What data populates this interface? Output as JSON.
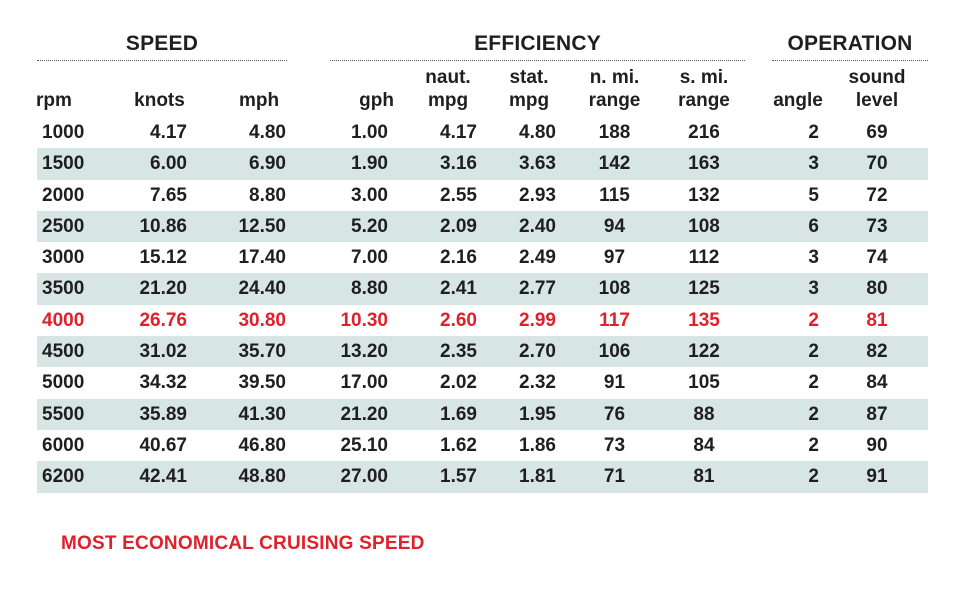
{
  "colors": {
    "accent": "#e0202b",
    "row_shade": "#d7e5e3",
    "text": "#1f1f1f"
  },
  "groups": {
    "speed": "SPEED",
    "efficiency": "EFFICIENCY",
    "operation": "OPERATION"
  },
  "columns": [
    {
      "key": "rpm",
      "lines": [
        "rpm"
      ]
    },
    {
      "key": "knots",
      "lines": [
        "knots"
      ]
    },
    {
      "key": "mph",
      "lines": [
        "mph"
      ]
    },
    {
      "key": "gph",
      "lines": [
        "gph"
      ]
    },
    {
      "key": "naut_mpg",
      "lines": [
        "naut.",
        "mpg"
      ]
    },
    {
      "key": "stat_mpg",
      "lines": [
        "stat.",
        "mpg"
      ]
    },
    {
      "key": "nmi_range",
      "lines": [
        "n. mi.",
        "range"
      ]
    },
    {
      "key": "smi_range",
      "lines": [
        "s. mi.",
        "range"
      ]
    },
    {
      "key": "angle",
      "lines": [
        "angle"
      ]
    },
    {
      "key": "sound",
      "lines": [
        "sound",
        "level"
      ]
    }
  ],
  "rows": [
    [
      "1000",
      "4.17",
      "4.80",
      "1.00",
      "4.17",
      "4.80",
      "188",
      "216",
      "2",
      "69"
    ],
    [
      "1500",
      "6.00",
      "6.90",
      "1.90",
      "3.16",
      "3.63",
      "142",
      "163",
      "3",
      "70"
    ],
    [
      "2000",
      "7.65",
      "8.80",
      "3.00",
      "2.55",
      "2.93",
      "115",
      "132",
      "5",
      "72"
    ],
    [
      "2500",
      "10.86",
      "12.50",
      "5.20",
      "2.09",
      "2.40",
      "94",
      "108",
      "6",
      "73"
    ],
    [
      "3000",
      "15.12",
      "17.40",
      "7.00",
      "2.16",
      "2.49",
      "97",
      "112",
      "3",
      "74"
    ],
    [
      "3500",
      "21.20",
      "24.40",
      "8.80",
      "2.41",
      "2.77",
      "108",
      "125",
      "3",
      "80"
    ],
    [
      "4000",
      "26.76",
      "30.80",
      "10.30",
      "2.60",
      "2.99",
      "117",
      "135",
      "2",
      "81"
    ],
    [
      "4500",
      "31.02",
      "35.70",
      "13.20",
      "2.35",
      "2.70",
      "106",
      "122",
      "2",
      "82"
    ],
    [
      "5000",
      "34.32",
      "39.50",
      "17.00",
      "2.02",
      "2.32",
      "91",
      "105",
      "2",
      "84"
    ],
    [
      "5500",
      "35.89",
      "41.30",
      "21.20",
      "1.69",
      "1.95",
      "76",
      "88",
      "2",
      "87"
    ],
    [
      "6000",
      "40.67",
      "46.80",
      "25.10",
      "1.62",
      "1.86",
      "73",
      "84",
      "2",
      "90"
    ],
    [
      "6200",
      "42.41",
      "48.80",
      "27.00",
      "1.57",
      "1.81",
      "71",
      "81",
      "2",
      "91"
    ]
  ],
  "highlight_rpm": "4000",
  "footnote": "MOST ECONOMICAL CRUISING SPEED"
}
